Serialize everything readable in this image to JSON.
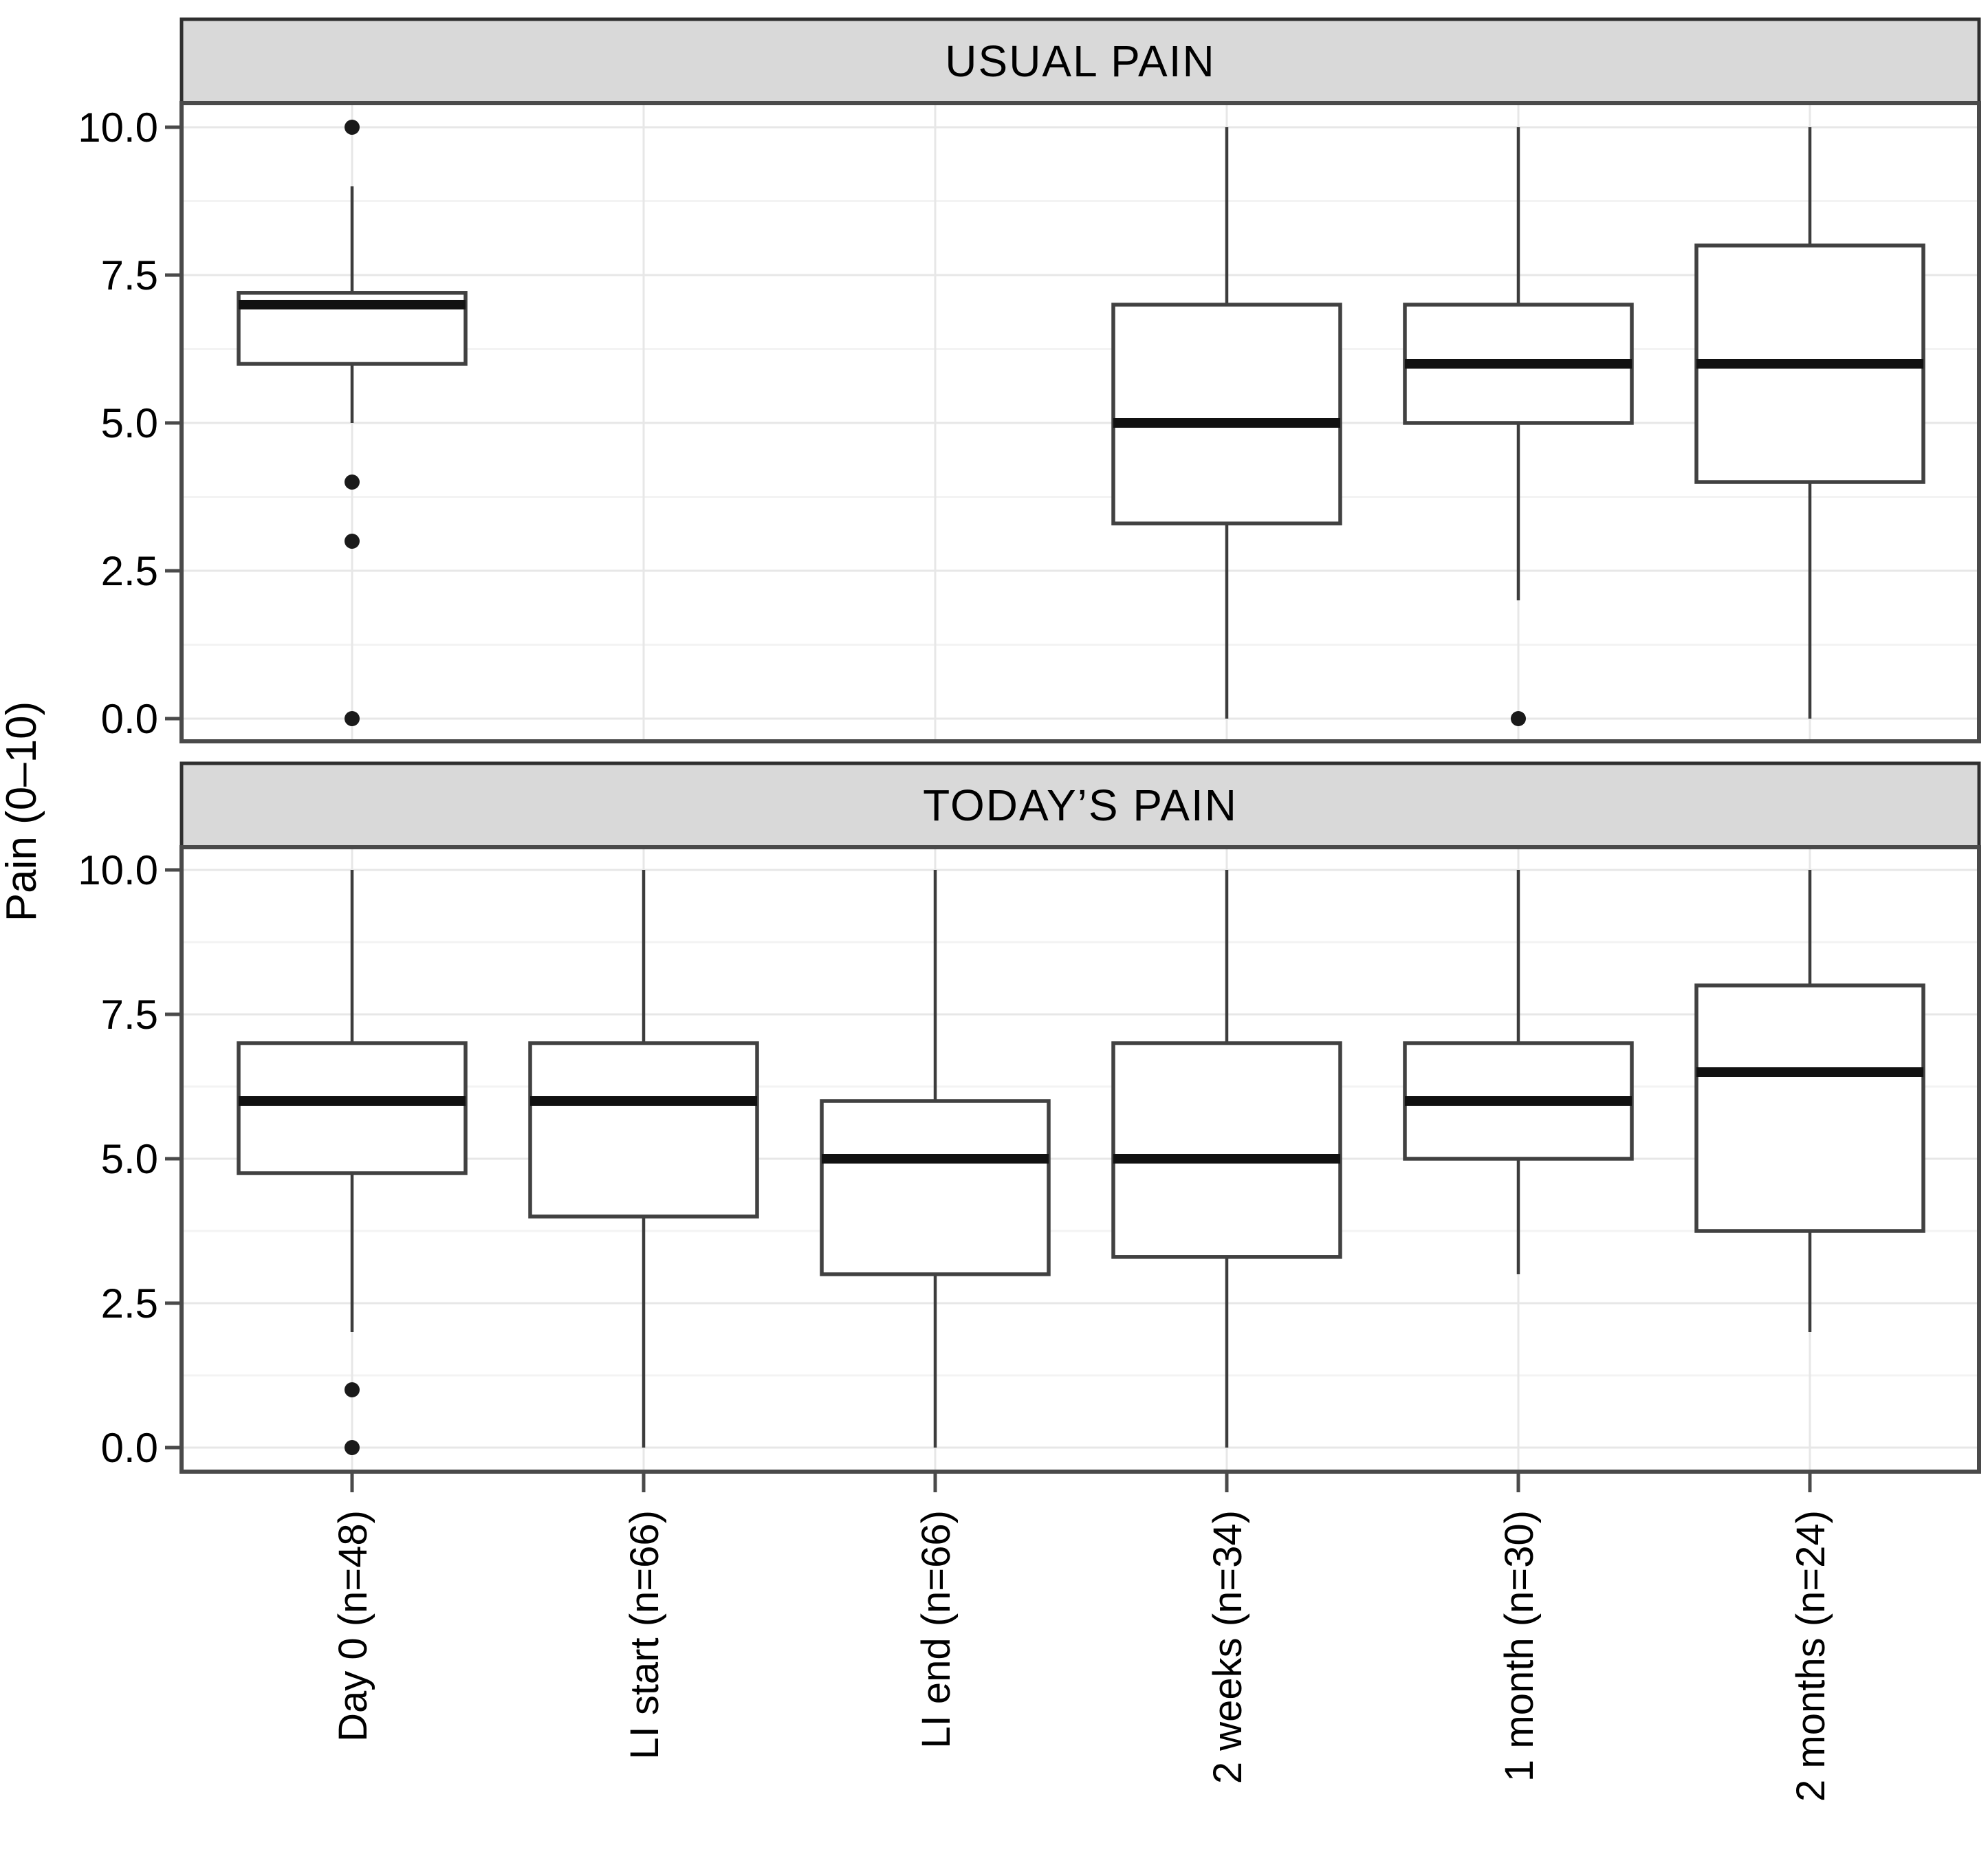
{
  "chart_data": {
    "type": "boxplot",
    "title": "",
    "ylabel": "Pain (0–10)",
    "xlabel": "",
    "ylim": [
      0,
      10
    ],
    "grid": "horizontal major every 2.5, minor every 1.25, vertical major at each category; light gray on white",
    "legend": "none",
    "yticks": [
      {
        "value": 10.0,
        "label": "10.0"
      },
      {
        "value": 7.5,
        "label": "7.5"
      },
      {
        "value": 5.0,
        "label": "5.0"
      },
      {
        "value": 2.5,
        "label": "2.5"
      },
      {
        "value": 0.0,
        "label": "0.0"
      }
    ],
    "yminor": [
      1.25,
      3.75,
      6.25,
      8.75
    ],
    "categories": [
      "Day 0 (n=48)",
      "LI start (n=66)",
      "LI end (n=66)",
      "2 weeks (n=34)",
      "1 month (n=30)",
      "2 months (n=24)"
    ],
    "facets": [
      {
        "title": "USUAL PAIN",
        "boxes": [
          {
            "category": "Day 0 (n=48)",
            "whislo": 5.0,
            "q1": 6.0,
            "med": 7.0,
            "q3": 7.2,
            "whishi": 9.0,
            "outliers": [
              10.0,
              4.0,
              3.0,
              0.0
            ]
          },
          null,
          null,
          {
            "category": "2 weeks (n=34)",
            "whislo": 0.0,
            "q1": 3.3,
            "med": 5.0,
            "q3": 7.0,
            "whishi": 10.0,
            "outliers": []
          },
          {
            "category": "1 month (n=30)",
            "whislo": 2.0,
            "q1": 5.0,
            "med": 6.0,
            "q3": 7.0,
            "whishi": 10.0,
            "outliers": [
              0.0
            ]
          },
          {
            "category": "2 months (n=24)",
            "whislo": 0.0,
            "q1": 4.0,
            "med": 6.0,
            "q3": 8.0,
            "whishi": 10.0,
            "outliers": []
          }
        ]
      },
      {
        "title": "TODAY’S PAIN",
        "boxes": [
          {
            "category": "Day 0 (n=48)",
            "whislo": 2.0,
            "q1": 4.75,
            "med": 6.0,
            "q3": 7.0,
            "whishi": 10.0,
            "outliers": [
              1.0,
              0.0
            ]
          },
          {
            "category": "LI start (n=66)",
            "whislo": 0.0,
            "q1": 4.0,
            "med": 6.0,
            "q3": 7.0,
            "whishi": 10.0,
            "outliers": []
          },
          {
            "category": "LI end (n=66)",
            "whislo": 0.0,
            "q1": 3.0,
            "med": 5.0,
            "q3": 6.0,
            "whishi": 10.0,
            "outliers": []
          },
          {
            "category": "2 weeks (n=34)",
            "whislo": 0.0,
            "q1": 3.3,
            "med": 5.0,
            "q3": 7.0,
            "whishi": 10.0,
            "outliers": []
          },
          {
            "category": "1 month (n=30)",
            "whislo": 3.0,
            "q1": 5.0,
            "med": 6.0,
            "q3": 7.0,
            "whishi": 10.0,
            "outliers": []
          },
          {
            "category": "2 months (n=24)",
            "whislo": 2.0,
            "q1": 3.75,
            "med": 6.5,
            "q3": 8.0,
            "whishi": 10.0,
            "outliers": []
          }
        ]
      }
    ],
    "colors": {
      "strip_background": "#d9d9d9",
      "strip_border": "#2f2f2f",
      "panel_border": "#4a4a4a",
      "panel_background": "#ffffff",
      "grid_major": "#e7e7e7",
      "grid_minor": "#f3f3f3",
      "box_stroke": "#414141",
      "box_fill": "#ffffff",
      "median": "#111111",
      "whisker": "#3c3c3c",
      "outlier": "#1a1a1a",
      "text": "#000000"
    }
  }
}
